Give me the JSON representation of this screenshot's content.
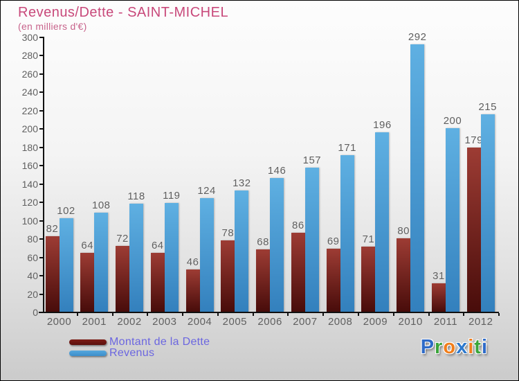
{
  "header": {
    "title": "Revenus/Dette - SAINT-MICHEL",
    "subtitle": "(en milliers d'€)"
  },
  "chart_data": {
    "type": "bar",
    "title": "Revenus/Dette - SAINT-MICHEL",
    "subtitle": "(en milliers d'€)",
    "categories": [
      "2000",
      "2001",
      "2002",
      "2003",
      "2004",
      "2005",
      "2006",
      "2007",
      "2008",
      "2009",
      "2010",
      "2011",
      "2012"
    ],
    "series": [
      {
        "name": "Montant de la Dette",
        "values": [
          82,
          64,
          72,
          64,
          46,
          78,
          68,
          86,
          69,
          71,
          80,
          31,
          179
        ],
        "color_top": "#9d3c34",
        "color_bottom": "#480c0a"
      },
      {
        "name": "Revenus",
        "values": [
          102,
          108,
          118,
          119,
          124,
          132,
          146,
          157,
          171,
          196,
          292,
          200,
          215
        ],
        "color_top": "#5fb0e2",
        "color_bottom": "#3380bd"
      }
    ],
    "ylim": [
      0,
      300
    ],
    "yticks": [
      0,
      20,
      40,
      60,
      80,
      100,
      120,
      140,
      160,
      180,
      200,
      220,
      240,
      260,
      280,
      300
    ],
    "grid": false,
    "value_labels": true,
    "legend_position": "bottom-left"
  },
  "legend": {
    "items": [
      {
        "label": "Montant de la Dette",
        "color": "#6b1210"
      },
      {
        "label": "Revenus",
        "color": "#4499d6"
      }
    ]
  },
  "logo": {
    "text": "Proxiti",
    "letters": [
      {
        "ch": "P",
        "color": "#2e6bc8"
      },
      {
        "ch": "r",
        "color": "#3aa53a"
      },
      {
        "ch": "o",
        "color": "#f07d1a"
      },
      {
        "ch": "x",
        "color": "#2e79cd"
      },
      {
        "ch": "i",
        "color": "#f07d1a"
      },
      {
        "ch": "t",
        "color": "#3aa53a"
      },
      {
        "ch": "i",
        "color": "#2e6bc8"
      }
    ]
  },
  "colors": {
    "title": "#c8487a",
    "axis": "#111111",
    "tick_label": "#5f5f5f",
    "legend_text": "#6b66e0",
    "background_top": "#fdfdfd",
    "background_bottom": "#cbcbcb"
  }
}
